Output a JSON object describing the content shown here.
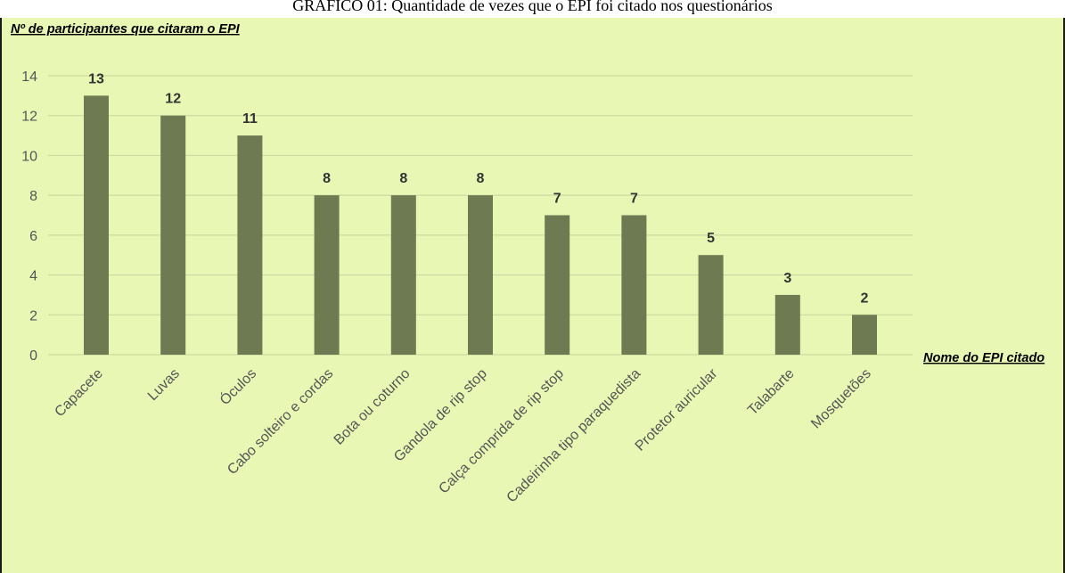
{
  "caption": "GRÁFICO 01: Quantidade de vezes que o EPI foi citado nos questionários",
  "colors": {
    "background": "#e8f7b4",
    "bar": "#6e7a52",
    "gridline": "#c6d59a"
  },
  "chart_data": {
    "type": "bar",
    "title": "",
    "ylabel": "Nº de participantes que citaram o EPI",
    "xlabel": "Nome do EPI citado",
    "ylim": [
      0,
      14
    ],
    "yticks": [
      0,
      2,
      4,
      6,
      8,
      10,
      12,
      14
    ],
    "grid": true,
    "categories": [
      "Capacete",
      "Luvas",
      "Óculos",
      "Cabo solteiro e cordas",
      "Bota ou coturno",
      "Gandola de rip stop",
      "Calça comprida de rip stop",
      "Cadeirinha tipo paraquedista",
      "Protetor auricular",
      "Talabarte",
      "Mosquetões"
    ],
    "values": [
      13,
      12,
      11,
      8,
      8,
      8,
      7,
      7,
      5,
      3,
      2
    ]
  }
}
